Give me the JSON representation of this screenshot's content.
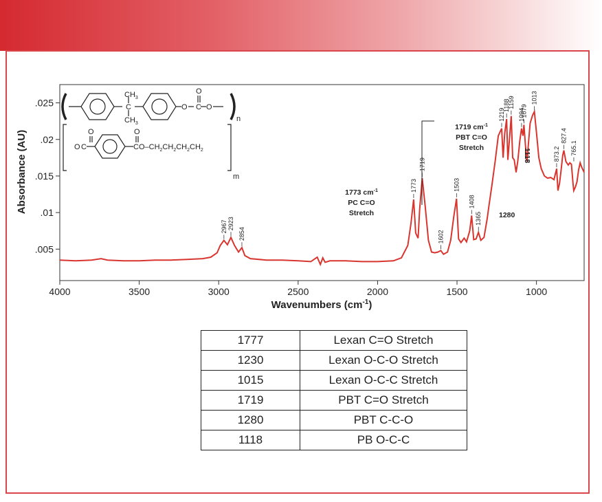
{
  "chart_data": {
    "type": "line",
    "xlabel": "Wavenumbers (cm",
    "xlabel_sup": "-1",
    "xlabel_end": ")",
    "ylabel": "Absorbance (AU)",
    "xlim": [
      4000,
      700
    ],
    "ylim": [
      0.0007,
      0.0275
    ],
    "x_reversed": true,
    "x_ticks": [
      "4000",
      "3500",
      "3000",
      "2500",
      "2000",
      "1500",
      "1000"
    ],
    "y_ticks": [
      ".005",
      ".01",
      ".015",
      ".02",
      ".025"
    ],
    "line_color": "#d9352f",
    "series": [
      {
        "x": [
          4000,
          3900,
          3800,
          3740,
          3700,
          3600,
          3500,
          3400,
          3300,
          3200,
          3100,
          3050,
          3010,
          2990,
          2967,
          2945,
          2923,
          2900,
          2875,
          2854,
          2835,
          2800,
          2700,
          2600,
          2500,
          2420,
          2380,
          2360,
          2345,
          2330,
          2300,
          2200,
          2100,
          2000,
          1900,
          1850,
          1810,
          1790,
          1773,
          1760,
          1745,
          1735,
          1719,
          1700,
          1680,
          1660,
          1640,
          1620,
          1602,
          1585,
          1560,
          1540,
          1520,
          1503,
          1490,
          1475,
          1455,
          1440,
          1420,
          1408,
          1395,
          1380,
          1365,
          1350,
          1330,
          1310,
          1300,
          1280,
          1260,
          1240,
          1230,
          1219,
          1210,
          1200,
          1188,
          1180,
          1170,
          1159,
          1150,
          1140,
          1128,
          1118,
          1105,
          1094,
          1085,
          1079,
          1070,
          1060,
          1040,
          1025,
          1013,
          1000,
          985,
          970,
          950,
          930,
          910,
          890,
          873.2,
          865,
          855,
          845,
          835,
          827.4,
          815,
          800,
          790,
          780,
          770,
          765.1,
          755,
          745,
          735,
          725,
          715,
          700
        ],
        "y": [
          0.0035,
          0.0034,
          0.0035,
          0.0037,
          0.0035,
          0.0034,
          0.0034,
          0.0035,
          0.0035,
          0.0036,
          0.0037,
          0.0039,
          0.0045,
          0.0055,
          0.0062,
          0.0056,
          0.0066,
          0.0055,
          0.0046,
          0.0052,
          0.0041,
          0.0037,
          0.0035,
          0.0035,
          0.0034,
          0.0033,
          0.0039,
          0.0029,
          0.0038,
          0.0032,
          0.0034,
          0.0034,
          0.0033,
          0.0033,
          0.0034,
          0.0038,
          0.0055,
          0.0085,
          0.0118,
          0.0072,
          0.0065,
          0.0105,
          0.0147,
          0.0108,
          0.0062,
          0.0046,
          0.0045,
          0.0046,
          0.0048,
          0.0043,
          0.0046,
          0.0062,
          0.0095,
          0.0119,
          0.0064,
          0.0059,
          0.0065,
          0.006,
          0.0075,
          0.0096,
          0.0063,
          0.0064,
          0.0073,
          0.0062,
          0.0066,
          0.0092,
          0.0108,
          0.0138,
          0.017,
          0.0205,
          0.021,
          0.0215,
          0.0175,
          0.0208,
          0.0228,
          0.0172,
          0.02,
          0.0232,
          0.0175,
          0.0172,
          0.0155,
          0.017,
          0.0198,
          0.0215,
          0.0205,
          0.022,
          0.0193,
          0.017,
          0.0222,
          0.0233,
          0.0238,
          0.021,
          0.0175,
          0.016,
          0.015,
          0.0147,
          0.0148,
          0.0145,
          0.016,
          0.013,
          0.014,
          0.0158,
          0.0178,
          0.0185,
          0.017,
          0.0165,
          0.0168,
          0.0166,
          0.014,
          0.013,
          0.0135,
          0.0142,
          0.0158,
          0.0168,
          0.0162,
          0.0155
        ]
      }
    ],
    "peak_labels": [
      {
        "x": 2967,
        "y": 0.0062,
        "text": "2967"
      },
      {
        "x": 2923,
        "y": 0.0066,
        "text": "2923"
      },
      {
        "x": 2854,
        "y": 0.0052,
        "text": "2854"
      },
      {
        "x": 1773,
        "y": 0.0118,
        "text": "1773"
      },
      {
        "x": 1719,
        "y": 0.0147,
        "text": "1719"
      },
      {
        "x": 1602,
        "y": 0.0048,
        "text": "1602"
      },
      {
        "x": 1503,
        "y": 0.0119,
        "text": "1503"
      },
      {
        "x": 1408,
        "y": 0.0096,
        "text": "1408"
      },
      {
        "x": 1365,
        "y": 0.0073,
        "text": "1365"
      },
      {
        "x": 1219,
        "y": 0.0215,
        "text": "1219"
      },
      {
        "x": 1188,
        "y": 0.0228,
        "text": "1188"
      },
      {
        "x": 1159,
        "y": 0.0232,
        "text": "1159"
      },
      {
        "x": 1094,
        "y": 0.0215,
        "text": "1094"
      },
      {
        "x": 1079,
        "y": 0.022,
        "text": "1079"
      },
      {
        "x": 1013,
        "y": 0.0238,
        "text": "1013"
      },
      {
        "x": 873.2,
        "y": 0.016,
        "text": "873.2"
      },
      {
        "x": 827.4,
        "y": 0.0185,
        "text": "827.4"
      },
      {
        "x": 765.1,
        "y": 0.0168,
        "text": "765.1"
      }
    ],
    "annotations": {
      "pc": {
        "line1": "1773 cm",
        "sup": "-1",
        "line2": "PC C=O",
        "line3": "Stretch"
      },
      "pbt": {
        "line1": "1719 cm",
        "sup": "-1",
        "line2": "PBT C=O",
        "line3": "Stretch"
      },
      "a1280": "1280",
      "a1118": "1118"
    },
    "structure": {
      "ch3": "CH",
      "three": "3",
      "carbonate_o": "O",
      "carbonate_c": "C",
      "sub_n": "n",
      "sub_m": "m",
      "pbt_o1": "O",
      "pbt_c1": "C",
      "pbt_c2": "C",
      "pbt_chain": "O–CH",
      "pbt_ch": "CH",
      "two": "2"
    }
  },
  "table": {
    "rows": [
      [
        "1777",
        "Lexan C=O Stretch"
      ],
      [
        "1230",
        "Lexan O-C-O Stretch"
      ],
      [
        "1015",
        "Lexan O-C-C Stretch"
      ],
      [
        "1719",
        "PBT C=O Stretch"
      ],
      [
        "1280",
        "PBT C-C-O"
      ],
      [
        "1118",
        "PB O-C-C"
      ]
    ]
  }
}
